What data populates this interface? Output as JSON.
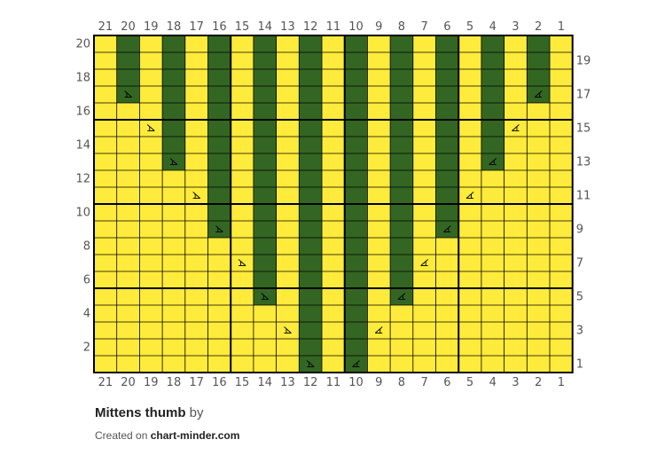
{
  "chart_data": {
    "type": "knitting-chart",
    "columns": 21,
    "rows": 20,
    "column_numbers_right_to_left": [
      21,
      20,
      19,
      18,
      17,
      16,
      15,
      14,
      13,
      12,
      11,
      10,
      9,
      8,
      7,
      6,
      5,
      4,
      3,
      2,
      1
    ],
    "left_row_labels": [
      20,
      18,
      16,
      14,
      12,
      10,
      8,
      6,
      4,
      2
    ],
    "right_row_labels": [
      19,
      17,
      15,
      13,
      11,
      9,
      7,
      5,
      3,
      1
    ],
    "colors": {
      "background": "#ffeb3b",
      "contrast": "#336622",
      "grid": "#000000"
    },
    "contrast_columns": [
      {
        "column": 20,
        "rows": [
          17,
          20
        ]
      },
      {
        "column": 18,
        "rows": [
          13,
          20
        ]
      },
      {
        "column": 16,
        "rows": [
          9,
          20
        ]
      },
      {
        "column": 14,
        "rows": [
          5,
          20
        ]
      },
      {
        "column": 12,
        "rows": [
          1,
          20
        ]
      },
      {
        "column": 10,
        "rows": [
          1,
          20
        ]
      },
      {
        "column": 8,
        "rows": [
          5,
          20
        ]
      },
      {
        "column": 6,
        "rows": [
          9,
          20
        ]
      },
      {
        "column": 4,
        "rows": [
          13,
          20
        ]
      },
      {
        "column": 2,
        "rows": [
          17,
          20
        ]
      }
    ],
    "decrease_symbols": [
      {
        "column": 20,
        "row": 17,
        "type": "ssk"
      },
      {
        "column": 2,
        "row": 17,
        "type": "k2tog"
      },
      {
        "column": 19,
        "row": 15,
        "type": "ssk"
      },
      {
        "column": 3,
        "row": 15,
        "type": "k2tog"
      },
      {
        "column": 18,
        "row": 13,
        "type": "ssk"
      },
      {
        "column": 4,
        "row": 13,
        "type": "k2tog"
      },
      {
        "column": 17,
        "row": 11,
        "type": "ssk"
      },
      {
        "column": 5,
        "row": 11,
        "type": "k2tog"
      },
      {
        "column": 16,
        "row": 9,
        "type": "ssk"
      },
      {
        "column": 6,
        "row": 9,
        "type": "k2tog"
      },
      {
        "column": 15,
        "row": 7,
        "type": "ssk"
      },
      {
        "column": 7,
        "row": 7,
        "type": "k2tog"
      },
      {
        "column": 14,
        "row": 5,
        "type": "ssk"
      },
      {
        "column": 8,
        "row": 5,
        "type": "k2tog"
      },
      {
        "column": 13,
        "row": 3,
        "type": "ssk"
      },
      {
        "column": 9,
        "row": 3,
        "type": "k2tog"
      },
      {
        "column": 12,
        "row": 1,
        "type": "ssk"
      },
      {
        "column": 10,
        "row": 1,
        "type": "k2tog"
      }
    ]
  },
  "footer": {
    "title": "Mittens thumb",
    "by": "by",
    "created_prefix": "Created on",
    "site": "chart-minder.com"
  }
}
